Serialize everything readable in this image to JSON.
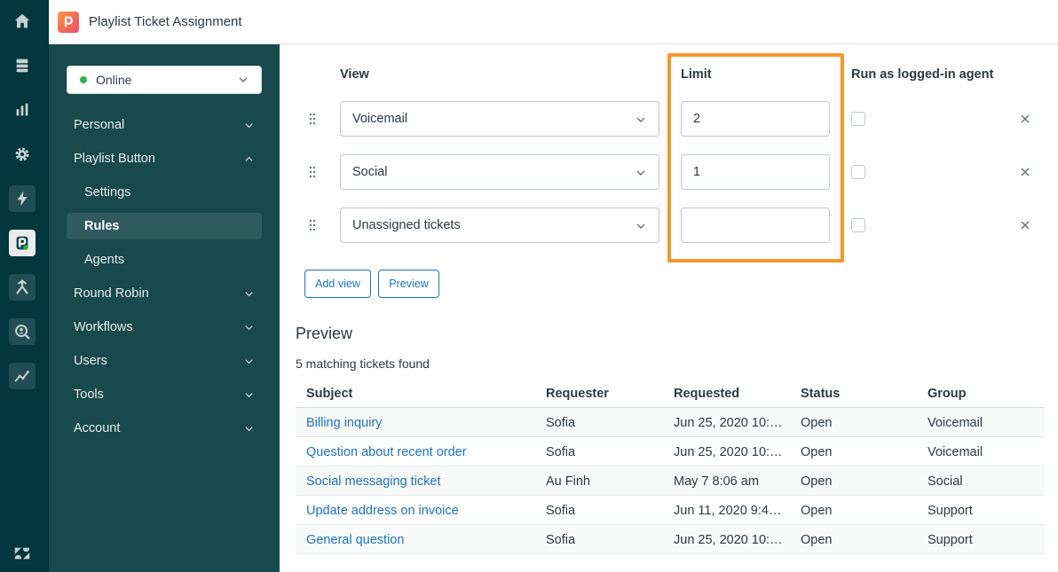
{
  "app": {
    "title": "Playlist Ticket Assignment"
  },
  "rail": {
    "icons": [
      "home-icon",
      "views-icon",
      "reporting-icon",
      "admin-gear-icon",
      "lightning-icon",
      "playlist-app-icon",
      "round-robin-icon",
      "search-user-icon",
      "analytics-icon",
      "zendesk-logo-icon"
    ]
  },
  "sidebar": {
    "status": {
      "label": "Online",
      "color": "#2fb344"
    },
    "items": [
      {
        "label": "Personal",
        "expanded": false
      },
      {
        "label": "Playlist Button",
        "expanded": true
      },
      {
        "label": "Settings",
        "sub": true
      },
      {
        "label": "Rules",
        "sub": true,
        "selected": true
      },
      {
        "label": "Agents",
        "sub": true
      },
      {
        "label": "Round Robin",
        "expanded": false
      },
      {
        "label": "Workflows",
        "expanded": false
      },
      {
        "label": "Users",
        "expanded": false
      },
      {
        "label": "Tools",
        "expanded": false
      },
      {
        "label": "Account",
        "expanded": false
      }
    ]
  },
  "rules": {
    "headers": {
      "view": "View",
      "limit": "Limit",
      "run_as": "Run as logged-in agent"
    },
    "rows": [
      {
        "view": "Voicemail",
        "limit": "2",
        "run_as": false
      },
      {
        "view": "Social",
        "limit": "1",
        "run_as": false
      },
      {
        "view": "Unassigned tickets",
        "limit": "",
        "run_as": false
      }
    ],
    "add_view_label": "Add view",
    "preview_label": "Preview",
    "highlight_color": "#f2992e"
  },
  "preview": {
    "title": "Preview",
    "count_text": "5 matching tickets found",
    "columns": [
      "Subject",
      "Requester",
      "Requested",
      "Status",
      "Group"
    ],
    "rows": [
      {
        "subject": "Billing inquiry",
        "requester": "Sofia",
        "requested": "Jun 25, 2020 10:…",
        "status": "Open",
        "group": "Voicemail"
      },
      {
        "subject": "Question about recent order",
        "requester": "Sofia",
        "requested": "Jun 25, 2020 10:…",
        "status": "Open",
        "group": "Voicemail"
      },
      {
        "subject": "Social messaging ticket",
        "requester": "Au Finh",
        "requested": "May 7 8:06 am",
        "status": "Open",
        "group": "Social"
      },
      {
        "subject": "Update address on invoice",
        "requester": "Sofia",
        "requested": "Jun 11, 2020 9:4…",
        "status": "Open",
        "group": "Support"
      },
      {
        "subject": "General question",
        "requester": "Sofia",
        "requested": "Jun 25, 2020 10:…",
        "status": "Open",
        "group": "Support"
      }
    ]
  },
  "colors": {
    "rail": "#03363d",
    "sidebar": "#17494d",
    "link": "#1f73b7"
  }
}
